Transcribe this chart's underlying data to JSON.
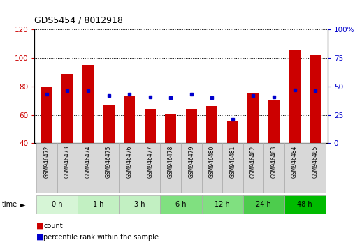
{
  "title": "GDS5454 / 8012918",
  "samples": [
    "GSM946472",
    "GSM946473",
    "GSM946474",
    "GSM946475",
    "GSM946476",
    "GSM946477",
    "GSM946478",
    "GSM946479",
    "GSM946480",
    "GSM946481",
    "GSM946482",
    "GSM946483",
    "GSM946484",
    "GSM946485"
  ],
  "count_values": [
    80,
    89,
    95,
    67,
    73,
    64,
    61,
    64,
    66,
    56,
    75,
    70,
    106,
    102
  ],
  "percentile_values": [
    43,
    46,
    46,
    42,
    43,
    41,
    40,
    43,
    40,
    21,
    42,
    41,
    47,
    46
  ],
  "ylim_left": [
    40,
    120
  ],
  "ylim_right": [
    0,
    100
  ],
  "left_ticks": [
    40,
    60,
    80,
    100,
    120
  ],
  "right_ticks": [
    0,
    25,
    50,
    75,
    100
  ],
  "bar_color": "#cc0000",
  "marker_color": "#0000cc",
  "groups": [
    {
      "label": "0 h",
      "start": 0,
      "end": 1
    },
    {
      "label": "1 h",
      "start": 2,
      "end": 3
    },
    {
      "label": "3 h",
      "start": 4,
      "end": 5
    },
    {
      "label": "6 h",
      "start": 6,
      "end": 7
    },
    {
      "label": "12 h",
      "start": 8,
      "end": 9
    },
    {
      "label": "24 h",
      "start": 10,
      "end": 11
    },
    {
      "label": "48 h",
      "start": 12,
      "end": 13
    }
  ],
  "group_colors": [
    "#d6f5d6",
    "#c2f0c2",
    "#c2f0c2",
    "#80e080",
    "#80e080",
    "#4dcc4d",
    "#00bb00"
  ],
  "xtick_bg": "#d8d8d8",
  "bar_width": 0.55,
  "title_fontsize": 9,
  "left_tick_color": "#cc0000",
  "right_tick_color": "#0000cc"
}
